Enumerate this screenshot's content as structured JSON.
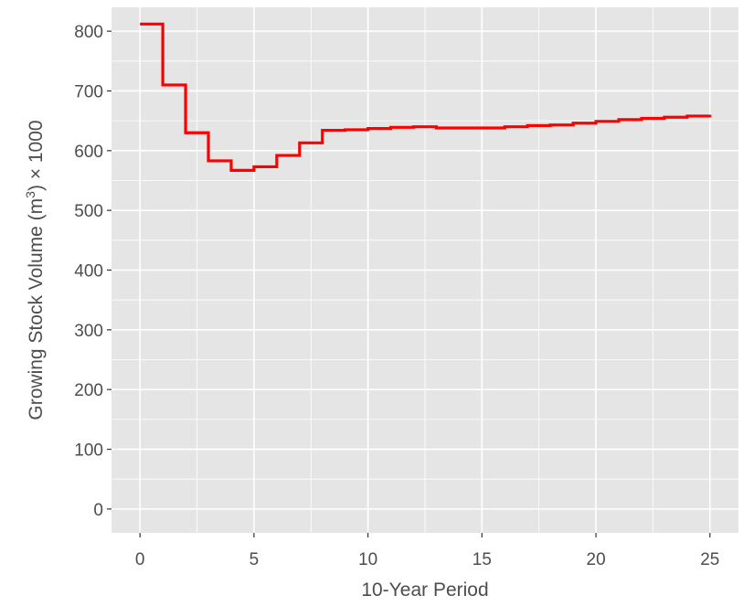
{
  "chart_data": {
    "type": "line",
    "step": true,
    "title": "",
    "xlabel": "10-Year Period",
    "ylabel": {
      "prefix": "Growing Stock Volume (m",
      "superscript": "3",
      "suffix": ") × 1000"
    },
    "xlim": [
      -1.25,
      26.25
    ],
    "ylim": [
      -40,
      840
    ],
    "x_ticks": [
      0,
      5,
      10,
      15,
      20,
      25
    ],
    "y_ticks": [
      0,
      100,
      200,
      300,
      400,
      500,
      600,
      700,
      800
    ],
    "x_tick_labels": [
      "0",
      "5",
      "10",
      "15",
      "20",
      "25"
    ],
    "y_tick_labels": [
      "0",
      "100",
      "200",
      "300",
      "400",
      "500",
      "600",
      "700",
      "800"
    ],
    "grid": true,
    "background_color": "#e5e5e5",
    "grid_color": "#ffffff",
    "series": [
      {
        "color": "#ff0000",
        "x": [
          0,
          1,
          2,
          3,
          4,
          5,
          6,
          7,
          8,
          9,
          10,
          11,
          12,
          13,
          14,
          15,
          16,
          17,
          18,
          19,
          20,
          21,
          22,
          23,
          24,
          25
        ],
        "y": [
          812,
          710,
          630,
          583,
          567,
          573,
          592,
          613,
          634,
          635,
          637,
          639,
          640,
          638,
          638,
          638,
          640,
          642,
          643,
          646,
          649,
          652,
          654,
          656,
          658,
          660
        ]
      }
    ]
  }
}
